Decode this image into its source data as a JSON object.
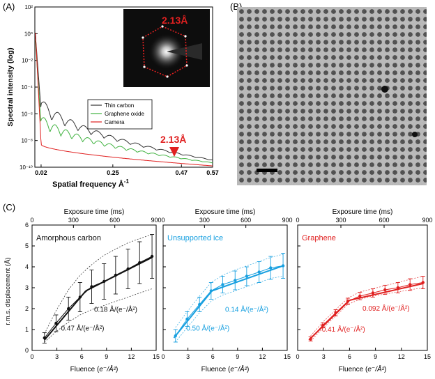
{
  "figure": {
    "panel_labels": {
      "a": "(A)",
      "b": "(B)",
      "c": "(C)"
    },
    "colors": {
      "thin_carbon": "#333333",
      "graphene_oxide": "#3fb23f",
      "camera": "#e02020",
      "accent_red": "#e02020",
      "ice_blue": "#18a0e0",
      "carbon_black": "#111111"
    }
  },
  "panel_a": {
    "ylabel": "Spectral intensity (log)",
    "xlabel": "Spatial frequency Å",
    "xlabel_exp": "-1",
    "inset_label": "2.13Å",
    "arrow_label": "2.13Å",
    "legend": [
      "Thin carbon",
      "Graphene oxide",
      "Camera"
    ]
  },
  "panel_b": {
    "description_free": true,
    "icon": "micrograph-image"
  },
  "panel_c": {
    "subplots": [
      {
        "title": "Amorphous carbon",
        "annot_upper": "0.18 Å/(e⁻/Å²)",
        "annot_lower": "0.47 Å/(e⁻/Å²)"
      },
      {
        "title": "Unsupported ice",
        "annot_upper": "0.14 Å/(e⁻/Å²)",
        "annot_lower": "0.50 Å/(e⁻/Å²)"
      },
      {
        "title": "Graphene",
        "annot_upper": "0.092 Å/(e⁻/Å²)",
        "annot_lower": "0.41 Å/(e⁻/Å²)"
      }
    ],
    "top_axis_label": "Exposure time (ms)",
    "ylabel": "r.m.s. displacement (Å)",
    "xlabel_prefix": "Fluence (",
    "xlabel_unit": "e⁻/Å²",
    "xlabel_suffix": ")"
  },
  "chart_data": [
    {
      "type": "line",
      "title": "",
      "xlabel": "Spatial frequency Å-1",
      "ylabel": "Spectral intensity (log)",
      "xlim": [
        0,
        0.57
      ],
      "ylim_log10": [
        -10,
        2
      ],
      "xticks": [
        0.02,
        0.25,
        0.47,
        0.57
      ],
      "xtick_labels": [
        "0.02",
        "0.25",
        "0.47",
        "0.57"
      ],
      "yticks_log10": [
        2,
        0,
        -2,
        -4,
        -6,
        -8,
        -10
      ],
      "ytick_labels": [
        "10²",
        "10⁰",
        "10⁻²",
        "10⁻⁴",
        "10⁻⁶",
        "10⁻⁸",
        "10⁻¹⁰"
      ],
      "series": [
        {
          "name": "Thin carbon",
          "shape": {
            "start": 0.5,
            "base_from": -5.8,
            "base_to": -9.5,
            "osc_amp": 1.1,
            "osc_period": 0.042,
            "osc_decay": 3.0
          }
        },
        {
          "name": "Graphene oxide",
          "shape": {
            "start": 0.2,
            "base_from": -6.9,
            "base_to": -9.7,
            "osc_amp": 0.9,
            "osc_period": 0.035,
            "osc_decay": 3.0
          }
        },
        {
          "name": "Camera",
          "shape": {
            "start": 1.0,
            "base_from": -8.3,
            "base_to": -9.9,
            "osc_amp": 0,
            "osc_period": 0.05,
            "osc_decay": 0
          }
        }
      ],
      "marker_x": 0.47
    },
    {
      "type": "line",
      "title": "Amorphous carbon",
      "xlabel": "Fluence (e⁻/Å²)",
      "ylabel": "r.m.s. displacement (Å)",
      "xlim": [
        0,
        15
      ],
      "ylim": [
        0,
        6
      ],
      "top_xlim": [
        0,
        900
      ],
      "xticks": [
        0,
        3,
        6,
        9,
        12,
        15
      ],
      "top_ticks": [
        0,
        300,
        600,
        900
      ],
      "yticks": [
        0,
        1,
        2,
        3,
        4,
        5,
        6
      ],
      "x": [
        1.5,
        2.9,
        4.4,
        5.8,
        7.2,
        8.7,
        10.1,
        11.6,
        13.0,
        14.5
      ],
      "mean": [
        0.6,
        1.3,
        2.0,
        2.55,
        3.05,
        3.3,
        3.6,
        3.9,
        4.2,
        4.5
      ],
      "err": [
        0.25,
        0.4,
        0.55,
        0.7,
        0.8,
        0.85,
        0.9,
        0.95,
        1.0,
        1.05
      ],
      "upper": [
        0.8,
        1.9,
        2.9,
        3.6,
        4.1,
        4.55,
        4.85,
        5.15,
        5.35,
        5.55
      ],
      "lower": [
        0.4,
        0.9,
        1.35,
        1.7,
        1.95,
        2.15,
        2.35,
        2.55,
        2.75,
        2.95
      ],
      "fit_lines": [
        {
          "x": [
            1.5,
            6.5
          ],
          "y": [
            0.5,
            2.85
          ]
        },
        {
          "x": [
            6.5,
            14.5
          ],
          "y": [
            2.85,
            4.45
          ]
        }
      ]
    },
    {
      "type": "line",
      "title": "Unsupported ice",
      "xlabel": "Fluence (e⁻/Å²)",
      "ylabel": "r.m.s. displacement (Å)",
      "xlim": [
        0,
        15
      ],
      "ylim": [
        0,
        6
      ],
      "top_xlim": [
        0,
        900
      ],
      "xticks": [
        0,
        3,
        6,
        9,
        12,
        15
      ],
      "top_ticks": [
        0,
        300,
        600,
        900
      ],
      "yticks": [
        0,
        1,
        2,
        3,
        4,
        5,
        6
      ],
      "x": [
        1.5,
        2.9,
        4.4,
        5.8,
        7.2,
        8.7,
        10.1,
        11.6,
        13.0,
        14.5
      ],
      "mean": [
        0.7,
        1.5,
        2.2,
        2.85,
        3.15,
        3.35,
        3.55,
        3.75,
        3.95,
        4.05
      ],
      "err": [
        0.3,
        0.35,
        0.35,
        0.4,
        0.4,
        0.45,
        0.45,
        0.5,
        0.55,
        0.6
      ],
      "upper": [
        1.1,
        1.85,
        2.6,
        3.25,
        3.6,
        3.85,
        4.05,
        4.25,
        4.45,
        4.6
      ],
      "lower": [
        0.4,
        1.1,
        1.8,
        2.35,
        2.65,
        2.85,
        3.05,
        3.25,
        3.45,
        3.55
      ],
      "fit_lines": [
        {
          "x": [
            1.3,
            5.9
          ],
          "y": [
            0.6,
            2.85
          ]
        },
        {
          "x": [
            5.9,
            14.5
          ],
          "y": [
            2.85,
            4.05
          ]
        }
      ]
    },
    {
      "type": "line",
      "title": "Graphene",
      "xlabel": "Fluence (e⁻/Å²)",
      "ylabel": "r.m.s. displacement (Å)",
      "xlim": [
        0,
        15
      ],
      "ylim": [
        0,
        6
      ],
      "top_xlim": [
        0,
        900
      ],
      "xticks": [
        0,
        3,
        6,
        9,
        12,
        15
      ],
      "top_ticks": [
        0,
        300,
        600,
        900
      ],
      "yticks": [
        0,
        1,
        2,
        3,
        4,
        5,
        6
      ],
      "x": [
        1.5,
        2.9,
        4.4,
        5.8,
        7.2,
        8.7,
        10.1,
        11.6,
        13.0,
        14.5
      ],
      "mean": [
        0.55,
        1.2,
        1.8,
        2.35,
        2.6,
        2.75,
        2.9,
        3.0,
        3.15,
        3.25
      ],
      "err": [
        0.1,
        0.12,
        0.15,
        0.15,
        0.18,
        0.2,
        0.22,
        0.25,
        0.28,
        0.3
      ],
      "upper": [
        0.7,
        1.35,
        1.95,
        2.5,
        2.8,
        2.95,
        3.1,
        3.25,
        3.4,
        3.55
      ],
      "lower": [
        0.45,
        1.05,
        1.65,
        2.2,
        2.45,
        2.6,
        2.7,
        2.8,
        2.9,
        3.0
      ],
      "fit_lines": [
        {
          "x": [
            1.3,
            6.0
          ],
          "y": [
            0.5,
            2.4
          ]
        },
        {
          "x": [
            6.0,
            14.5
          ],
          "y": [
            2.4,
            3.2
          ]
        }
      ]
    }
  ]
}
